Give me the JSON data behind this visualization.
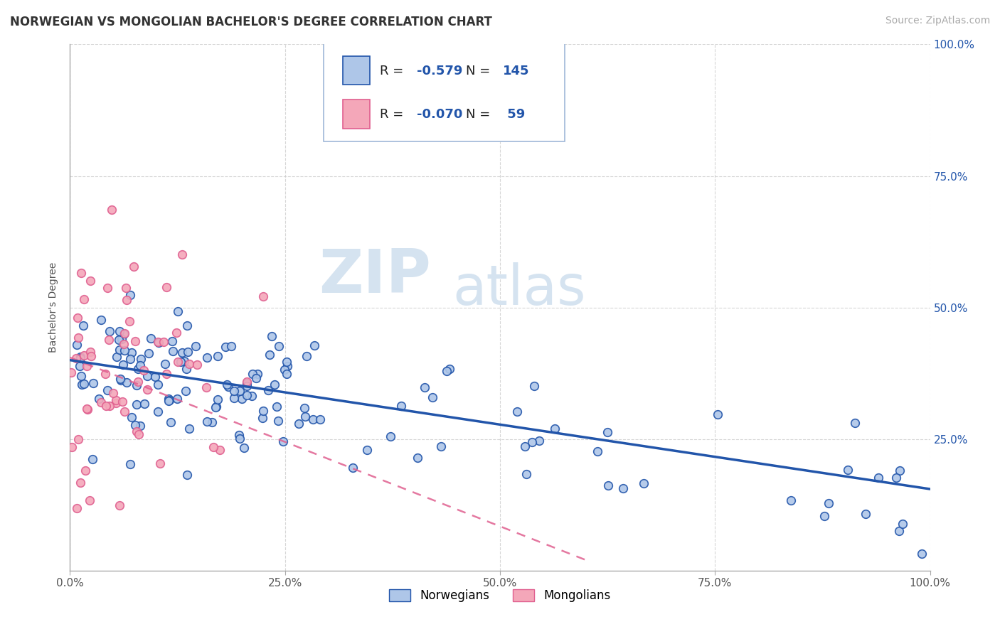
{
  "title": "NORWEGIAN VS MONGOLIAN BACHELOR'S DEGREE CORRELATION CHART",
  "source": "Source: ZipAtlas.com",
  "ylabel": "Bachelor's Degree",
  "xlim": [
    0.0,
    1.0
  ],
  "ylim": [
    0.0,
    1.0
  ],
  "xticks": [
    0.0,
    0.25,
    0.5,
    0.75,
    1.0
  ],
  "xtick_labels": [
    "0.0%",
    "25.0%",
    "50.0%",
    "75.0%",
    "100.0%"
  ],
  "ytick_labels": [
    "25.0%",
    "50.0%",
    "75.0%",
    "100.0%"
  ],
  "yticks": [
    0.25,
    0.5,
    0.75,
    1.0
  ],
  "norwegian_color": "#aec6e8",
  "mongolian_color": "#f4a7b9",
  "trend_norwegian_color": "#2255aa",
  "trend_mongolian_color": "#e06090",
  "R_norwegian": -0.579,
  "N_norwegian": 145,
  "R_mongolian": -0.07,
  "N_mongolian": 59,
  "watermark_zip": "ZIP",
  "watermark_atlas": "atlas",
  "background_color": "#ffffff",
  "grid_color": "#cccccc",
  "title_fontsize": 12,
  "axis_label_fontsize": 10,
  "tick_fontsize": 11,
  "source_fontsize": 10,
  "marker_size": 70,
  "marker_edge_width": 1.2,
  "nor_trend_start_x": 0.0,
  "nor_trend_end_x": 1.0,
  "nor_trend_start_y": 0.4,
  "nor_trend_end_y": 0.155,
  "mon_trend_start_x": 0.0,
  "mon_trend_end_x": 0.6,
  "mon_trend_start_y": 0.405,
  "mon_trend_end_y": 0.02
}
